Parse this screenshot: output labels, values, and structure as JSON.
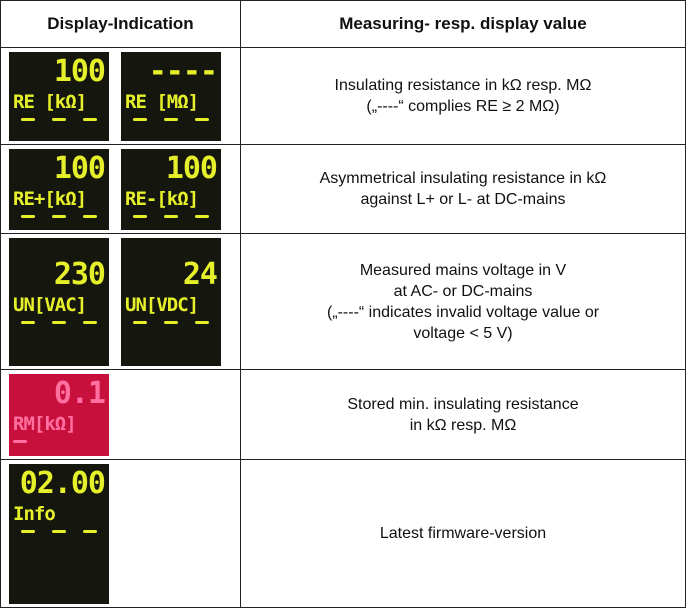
{
  "table": {
    "headers": [
      "Display-Indication",
      "Measuring- resp. display value"
    ],
    "rows": [
      {
        "displays": [
          {
            "top": "100",
            "bottom": "RE [kΩ]",
            "color": "#e6f02a"
          },
          {
            "top": "----",
            "bottom": "RE [MΩ]",
            "color": "#e6f02a"
          }
        ],
        "lines": [
          "Insulating resistance in kΩ resp. MΩ",
          "(„----“ complies RE ≥ 2 MΩ)"
        ]
      },
      {
        "displays": [
          {
            "top": "100",
            "bottom": "RE+[kΩ]",
            "color": "#e6f02a"
          },
          {
            "top": "100",
            "bottom": "RE-[kΩ]",
            "color": "#e6f02a"
          }
        ],
        "lines": [
          "Asymmetrical insulating resistance in kΩ",
          "against L+ or L- at DC-mains"
        ]
      },
      {
        "displays": [
          {
            "top": "230",
            "bottom": "UN[VAC]",
            "color": "#e6f02a"
          },
          {
            "top": "24",
            "bottom": "UN[VDC]",
            "color": "#e6f02a"
          }
        ],
        "lines": [
          "Measured mains voltage in V",
          "at AC- or DC-mains",
          "(„----“ indicates invalid voltage value or",
          "voltage < 5 V)"
        ]
      },
      {
        "displays": [
          {
            "top": "0.1",
            "bottom": "RM[kΩ]",
            "color": "#ff6fa0"
          }
        ],
        "lines": [
          "Stored min. insulating resistance",
          "in kΩ resp. MΩ"
        ]
      },
      {
        "displays": [
          {
            "top": "02.00",
            "bottom": "Info",
            "color": "#e6f02a"
          }
        ],
        "lines": [
          "Latest firmware-version"
        ]
      }
    ]
  }
}
